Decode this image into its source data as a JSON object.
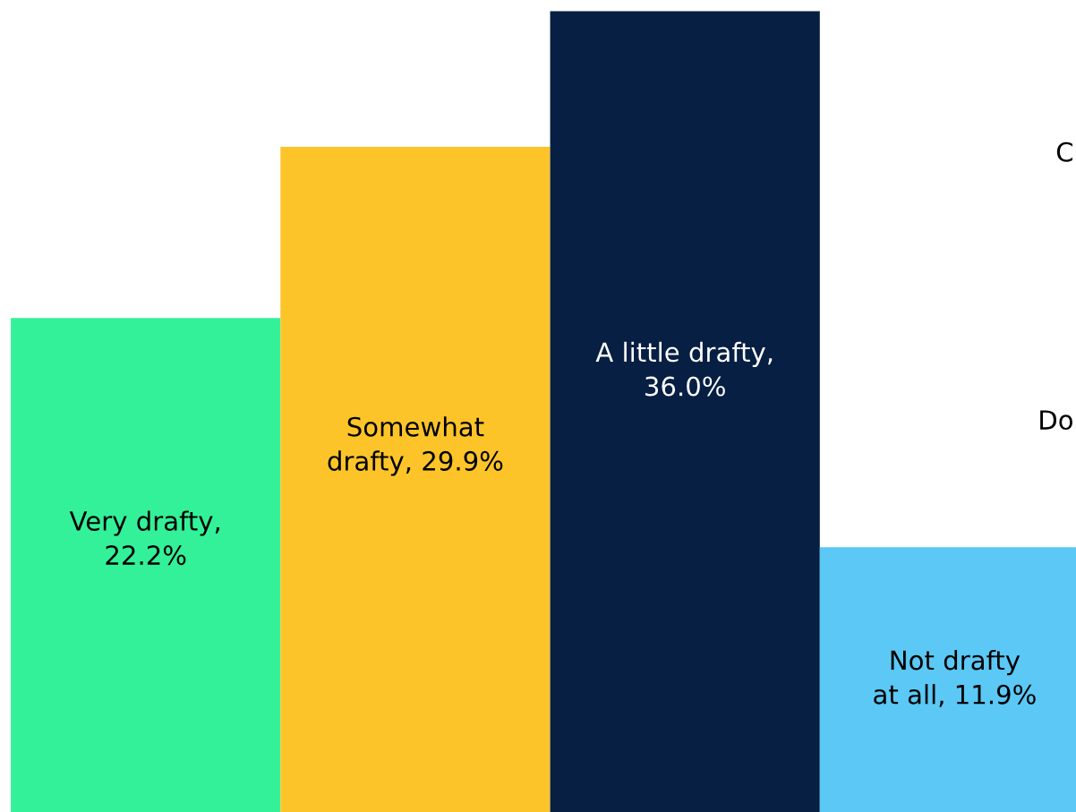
{
  "chart_data": {
    "type": "bar",
    "categories": [
      null,
      null,
      null,
      null
    ],
    "values": [
      22.2,
      29.9,
      36.0,
      11.9
    ],
    "colors": [
      "#33f199",
      "#fdc42a",
      "#061f42",
      "#5bc8f5"
    ],
    "value_labels": [
      "Very drafty,\n22.2%",
      "Somewhat\ndrafty, 29.9%",
      "A little drafty,\n36.0%",
      "Not drafty\nat all, 11.9%"
    ],
    "ylim": [
      0,
      36.5
    ],
    "annotations": [
      "C",
      "Do"
    ],
    "grid": false,
    "legend": false
  }
}
